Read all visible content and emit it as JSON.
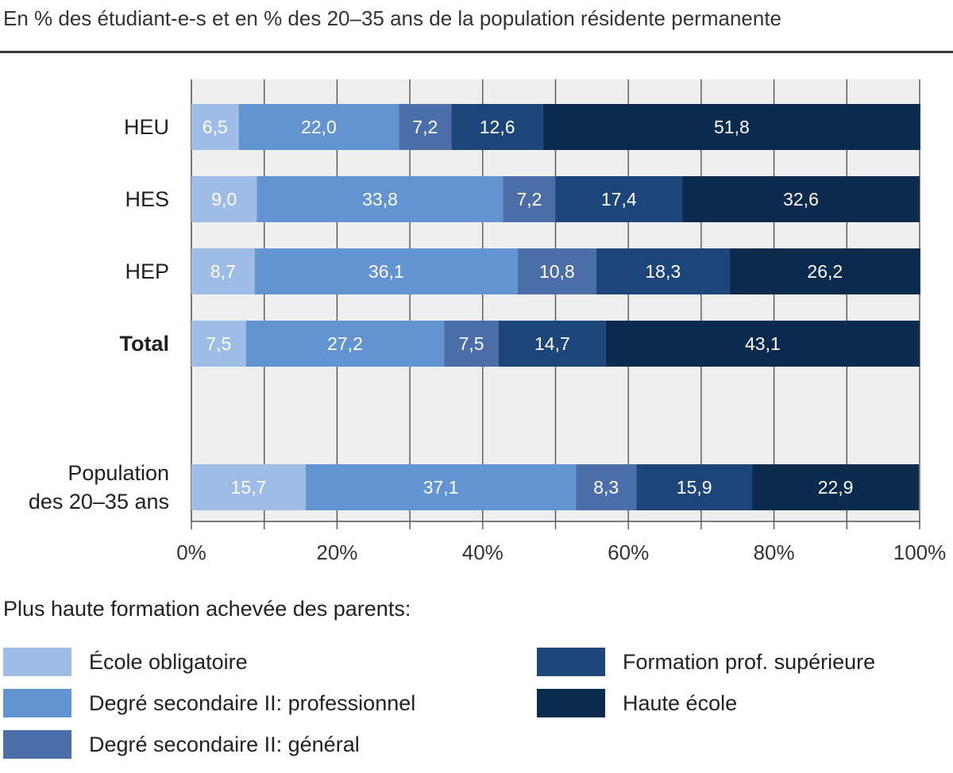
{
  "subtitle": "En % des étudiant-e-s et en % des 20–35 ans de la population résidente permanente",
  "legend_title": "Plus haute formation achevée des parents:",
  "chart_data": {
    "type": "bar",
    "orientation": "horizontal",
    "stacked": true,
    "categories": [
      "HEU",
      "HES",
      "HEP",
      "Total",
      "Population des 20–35 ans"
    ],
    "category_display": [
      [
        "HEU"
      ],
      [
        "HES"
      ],
      [
        "HEP"
      ],
      [
        "Total"
      ],
      [
        "Population",
        "des 20–35 ans"
      ]
    ],
    "bold_categories": [
      "Total"
    ],
    "series": [
      {
        "name": "École obligatoire",
        "color": "#9dbce6",
        "values": [
          6.5,
          9.0,
          8.7,
          7.5,
          15.7
        ],
        "labels": [
          "6,5",
          "9,0",
          "8,7",
          "7,5",
          "15,7"
        ]
      },
      {
        "name": "Degré secondaire II: professionnel",
        "color": "#6194d0",
        "values": [
          22.0,
          33.8,
          36.1,
          27.2,
          37.1
        ],
        "labels": [
          "22,0",
          "33,8",
          "36,1",
          "27,2",
          "37,1"
        ]
      },
      {
        "name": "Degré secondaire II: général",
        "color": "#4b6ea9",
        "values": [
          7.2,
          7.2,
          10.8,
          7.5,
          8.3
        ],
        "labels": [
          "7,2",
          "7,2",
          "10,8",
          "7,5",
          "8,3"
        ]
      },
      {
        "name": "Formation prof. supérieure",
        "color": "#1c457a",
        "values": [
          12.6,
          17.4,
          18.3,
          14.7,
          15.9
        ],
        "labels": [
          "12,6",
          "17,4",
          "18,3",
          "14,7",
          "15,9"
        ]
      },
      {
        "name": "Haute école",
        "color": "#0b2b4e",
        "values": [
          51.8,
          32.6,
          26.2,
          43.1,
          22.9
        ],
        "labels": [
          "51,8",
          "32,6",
          "26,2",
          "43,1",
          "22,9"
        ]
      }
    ],
    "xlim": [
      0,
      100
    ],
    "xticks": [
      "0%",
      "20%",
      "40%",
      "60%",
      "80%",
      "100%"
    ],
    "grid": true,
    "legend_position": "bottom"
  }
}
